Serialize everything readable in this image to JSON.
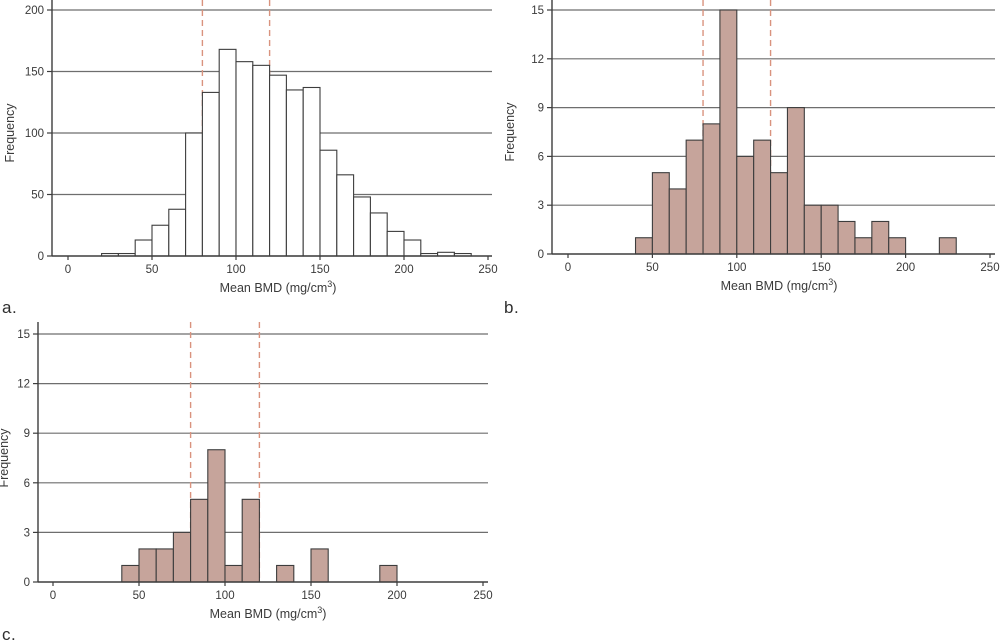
{
  "figure": {
    "background": "#ffffff",
    "panel_labels": {
      "a": "a.",
      "b": "b.",
      "c": "c."
    }
  },
  "colors": {
    "bar_fill_open": "#ffffff",
    "bar_fill_shaded": "#c6a49b",
    "bar_stroke": "#3d3d3d",
    "grid": "#6e6e6e",
    "axis": "#3d3d3d",
    "ref_line": "#d9937e",
    "text": "#3a3a3a"
  },
  "chart_data": [
    {
      "type": "bar",
      "subtype": "histogram",
      "panel": "a.",
      "title": "",
      "xlabel_main": "Mean BMD (mg/cm",
      "xlabel_sup": "3",
      "xlabel_end": ")",
      "ylabel": "Frequency",
      "xlim": [
        0,
        250
      ],
      "ylim": [
        0,
        200
      ],
      "xticks": [
        0,
        50,
        100,
        150,
        200,
        250
      ],
      "yticks": [
        0,
        50,
        100,
        150,
        200
      ],
      "grid": "horizontal",
      "bin_width": 10,
      "bin_starts": [
        20,
        30,
        40,
        50,
        60,
        70,
        80,
        90,
        100,
        110,
        120,
        130,
        140,
        150,
        160,
        170,
        180,
        190,
        200,
        210,
        220,
        230
      ],
      "counts": [
        2,
        2,
        13,
        25,
        38,
        100,
        133,
        168,
        158,
        155,
        147,
        135,
        137,
        86,
        66,
        48,
        35,
        20,
        13,
        2,
        3,
        2
      ],
      "ref_lines_x": [
        80,
        120
      ],
      "bar_fill": "#ffffff"
    },
    {
      "type": "bar",
      "subtype": "histogram",
      "panel": "b.",
      "title": "",
      "xlabel_main": "Mean BMD (mg/cm",
      "xlabel_sup": "3",
      "xlabel_end": ")",
      "ylabel": "Frequency",
      "xlim": [
        0,
        250
      ],
      "ylim": [
        0,
        15
      ],
      "xticks": [
        0,
        50,
        100,
        150,
        200,
        250
      ],
      "yticks": [
        0,
        3,
        6,
        9,
        12,
        15
      ],
      "grid": "horizontal",
      "bin_width": 10,
      "bin_starts": [
        40,
        50,
        60,
        70,
        80,
        90,
        100,
        110,
        120,
        130,
        140,
        150,
        160,
        170,
        180,
        190,
        200,
        210,
        220
      ],
      "counts": [
        1,
        5,
        4,
        7,
        8,
        15,
        6,
        7,
        5,
        9,
        3,
        3,
        2,
        1,
        2,
        1,
        0,
        0,
        1
      ],
      "ref_lines_x": [
        80,
        120
      ],
      "bar_fill": "#c6a49b"
    },
    {
      "type": "bar",
      "subtype": "histogram",
      "panel": "c.",
      "title": "",
      "xlabel_main": "Mean BMD (mg/cm",
      "xlabel_sup": "3",
      "xlabel_end": ")",
      "ylabel": "Frequency",
      "xlim": [
        0,
        250
      ],
      "ylim": [
        0,
        15
      ],
      "xticks": [
        0,
        50,
        100,
        150,
        200,
        250
      ],
      "yticks": [
        0,
        3,
        6,
        9,
        12,
        15
      ],
      "grid": "horizontal",
      "bin_width": 10,
      "bin_starts": [
        40,
        50,
        60,
        70,
        80,
        90,
        100,
        110,
        120,
        130,
        140,
        150,
        160,
        170,
        180,
        190
      ],
      "counts": [
        1,
        2,
        2,
        3,
        5,
        8,
        1,
        5,
        0,
        1,
        0,
        2,
        0,
        0,
        0,
        1
      ],
      "ref_lines_x": [
        80,
        120
      ],
      "bar_fill": "#c6a49b"
    }
  ]
}
